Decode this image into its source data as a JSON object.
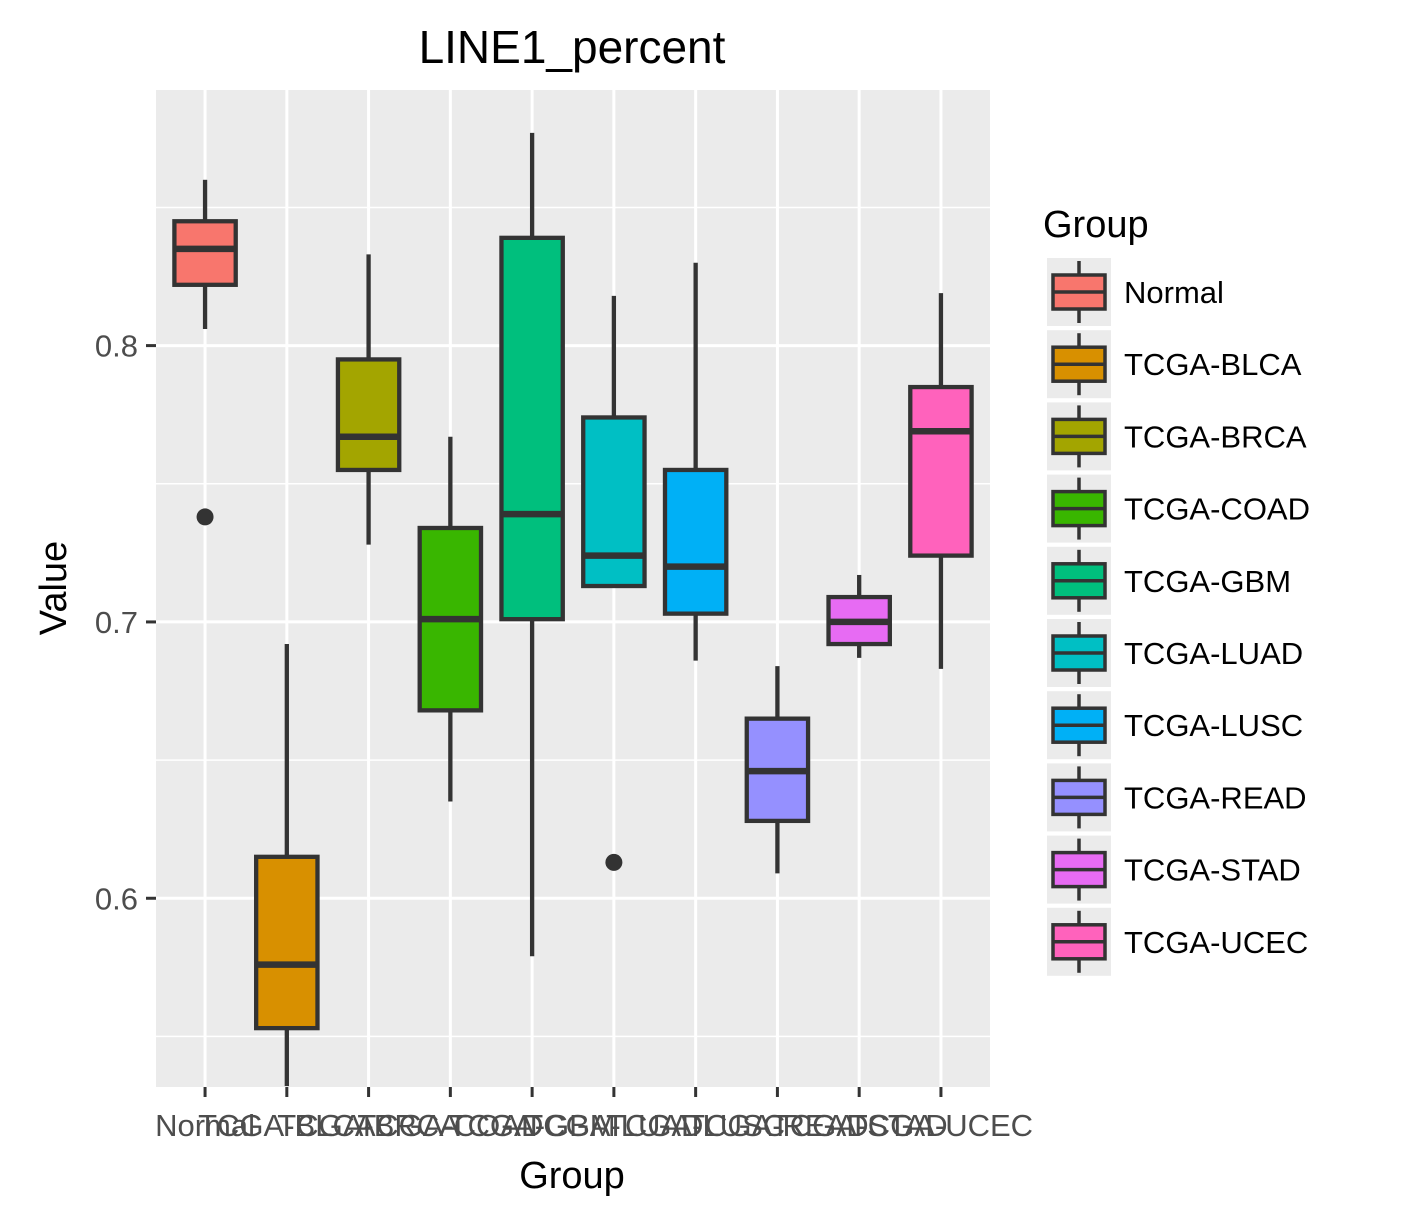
{
  "chart_data": {
    "type": "boxplot",
    "title": "LINE1_percent",
    "xlabel": "Group",
    "ylabel": "Value",
    "ylim": [
      0.5317,
      0.8925
    ],
    "y_ticks": [
      0.6,
      0.7,
      0.8
    ],
    "y_tick_labels": [
      "0.6",
      "0.7",
      "0.8"
    ],
    "y_minor_ticks": [
      0.55,
      0.65,
      0.75,
      0.85
    ],
    "grid": true,
    "categories": [
      "Normal",
      "TCGA-BLCA",
      "TCGA-BRCA",
      "TCGA-COAD",
      "TCGA-GBM",
      "TCGA-LUAD",
      "TCGA-LUSC",
      "TCGA-READ",
      "TCGA-STAD",
      "TCGA-UCEC"
    ],
    "boxes": [
      {
        "group": "Normal",
        "color": "#F8766D",
        "whisker_low": 0.806,
        "q1": 0.822,
        "median": 0.835,
        "q3": 0.845,
        "whisker_high": 0.86,
        "outliers": [
          0.738
        ]
      },
      {
        "group": "TCGA-BLCA",
        "color": "#D89000",
        "whisker_low": 0.532,
        "q1": 0.553,
        "median": 0.576,
        "q3": 0.615,
        "whisker_high": 0.692,
        "outliers": []
      },
      {
        "group": "TCGA-BRCA",
        "color": "#A3A500",
        "whisker_low": 0.728,
        "q1": 0.755,
        "median": 0.767,
        "q3": 0.795,
        "whisker_high": 0.833,
        "outliers": []
      },
      {
        "group": "TCGA-COAD",
        "color": "#39B600",
        "whisker_low": 0.635,
        "q1": 0.668,
        "median": 0.701,
        "q3": 0.734,
        "whisker_high": 0.767,
        "outliers": []
      },
      {
        "group": "TCGA-GBM",
        "color": "#00BF7D",
        "whisker_low": 0.579,
        "q1": 0.701,
        "median": 0.739,
        "q3": 0.839,
        "whisker_high": 0.877,
        "outliers": []
      },
      {
        "group": "TCGA-LUAD",
        "color": "#00BFC4",
        "whisker_low": 0.713,
        "q1": 0.713,
        "median": 0.724,
        "q3": 0.774,
        "whisker_high": 0.818,
        "outliers": [
          0.613
        ]
      },
      {
        "group": "TCGA-LUSC",
        "color": "#00B0F6",
        "whisker_low": 0.686,
        "q1": 0.703,
        "median": 0.72,
        "q3": 0.755,
        "whisker_high": 0.83,
        "outliers": []
      },
      {
        "group": "TCGA-READ",
        "color": "#9590FF",
        "whisker_low": 0.609,
        "q1": 0.628,
        "median": 0.646,
        "q3": 0.665,
        "whisker_high": 0.684,
        "outliers": []
      },
      {
        "group": "TCGA-STAD",
        "color": "#E76BF3",
        "whisker_low": 0.687,
        "q1": 0.692,
        "median": 0.7,
        "q3": 0.709,
        "whisker_high": 0.717,
        "outliers": []
      },
      {
        "group": "TCGA-UCEC",
        "color": "#FF62BC",
        "whisker_low": 0.683,
        "q1": 0.724,
        "median": 0.769,
        "q3": 0.785,
        "whisker_high": 0.819,
        "outliers": []
      }
    ],
    "legend": {
      "title": "Group",
      "position": "right",
      "entries": [
        "Normal",
        "TCGA-BLCA",
        "TCGA-BRCA",
        "TCGA-COAD",
        "TCGA-GBM",
        "TCGA-LUAD",
        "TCGA-LUSC",
        "TCGA-READ",
        "TCGA-STAD",
        "TCGA-UCEC"
      ]
    },
    "colors": {
      "panel_background": "#EBEBEB",
      "grid_line": "#FFFFFF",
      "box_outline": "#333333",
      "tick_label": "#4D4D4D"
    }
  }
}
